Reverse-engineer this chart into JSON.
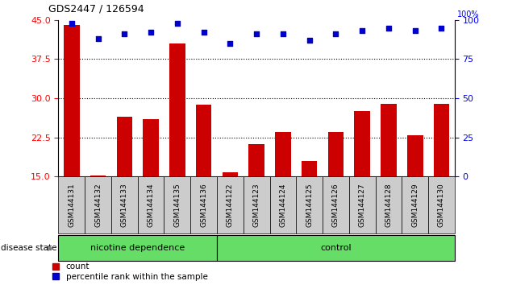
{
  "title": "GDS2447 / 126594",
  "categories": [
    "GSM144131",
    "GSM144132",
    "GSM144133",
    "GSM144134",
    "GSM144135",
    "GSM144136",
    "GSM144122",
    "GSM144123",
    "GSM144124",
    "GSM144125",
    "GSM144126",
    "GSM144127",
    "GSM144128",
    "GSM144129",
    "GSM144130"
  ],
  "bar_values": [
    44.0,
    15.3,
    26.5,
    26.0,
    40.5,
    28.8,
    15.8,
    21.3,
    23.5,
    18.0,
    23.5,
    27.5,
    29.0,
    23.0,
    29.0
  ],
  "dot_values": [
    98,
    88,
    91,
    92,
    98,
    92,
    85,
    91,
    91,
    87,
    91,
    93,
    95,
    93,
    95
  ],
  "bar_color": "#cc0000",
  "dot_color": "#0000cc",
  "ylim_left": [
    15,
    45
  ],
  "ylim_right": [
    0,
    100
  ],
  "yticks_left": [
    15,
    22.5,
    30,
    37.5,
    45
  ],
  "yticks_right": [
    0,
    25,
    50,
    75,
    100
  ],
  "grid_values": [
    22.5,
    30,
    37.5
  ],
  "group1_label": "nicotine dependence",
  "group1_indices": [
    0,
    5
  ],
  "group2_label": "control",
  "group2_indices": [
    6,
    14
  ],
  "group_bg_color": "#66dd66",
  "xticklabel_bg": "#cccccc",
  "disease_state_label": "disease state",
  "legend_count_label": "count",
  "legend_pct_label": "percentile rank within the sample",
  "background_color": "#ffffff",
  "pct_label": "100%"
}
